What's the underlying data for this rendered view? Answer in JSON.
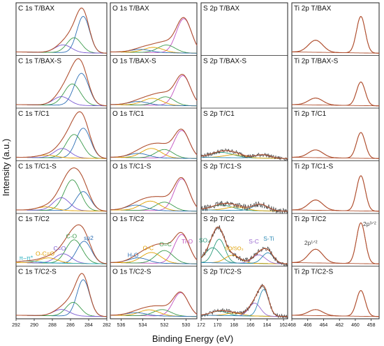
{
  "chart_data": {
    "type": "line",
    "xlabel": "Binding Energy (eV)",
    "ylabel": "Intensity (a.u.)",
    "grid": false,
    "colors": {
      "envelope": "#b05030",
      "raw": "#444444",
      "sp2": "#2d6fb5",
      "sp3": "#3a9a4a",
      "c_o": "#3a9a4a",
      "co_double": "#7a5ad2",
      "o_c_o": "#e0a000",
      "pi": "#2ab0c0",
      "ti_o": "#c050c0",
      "o_eq_c": "#3a9a4a",
      "o_c": "#e0a000",
      "h_o": "#2d6fb5",
      "so4": "#2a9a7a",
      "so3": "#e0a000",
      "s_c": "#9a6ad0",
      "s_ti": "#2d8ab5",
      "ti": "#b05030"
    },
    "columns": [
      {
        "key": "C",
        "xlim": [
          292,
          282
        ],
        "ticks": [
          292,
          290,
          288,
          286,
          284,
          282
        ],
        "tick_labels": [
          "292",
          "290",
          "288",
          "286",
          "284",
          "282"
        ],
        "rows": [
          {
            "label": "C 1s T/BAX",
            "components": [
              {
                "center": 284.6,
                "height": 0.85,
                "width": 0.7,
                "color": "sp2"
              },
              {
                "center": 285.6,
                "height": 0.35,
                "width": 0.8,
                "color": "sp3"
              },
              {
                "center": 286.8,
                "height": 0.18,
                "width": 0.9,
                "color": "co_double"
              }
            ]
          },
          {
            "label": "C 1s T/BAX-S",
            "components": [
              {
                "center": 284.8,
                "height": 0.75,
                "width": 0.8,
                "color": "sp2"
              },
              {
                "center": 285.8,
                "height": 0.5,
                "width": 0.9,
                "color": "sp3"
              },
              {
                "center": 287.0,
                "height": 0.2,
                "width": 0.9,
                "color": "co_double"
              }
            ]
          },
          {
            "label": "C 1s T/C1",
            "components": [
              {
                "center": 284.6,
                "height": 0.7,
                "width": 0.8,
                "color": "sp2"
              },
              {
                "center": 285.6,
                "height": 0.55,
                "width": 0.9,
                "color": "sp3"
              },
              {
                "center": 286.9,
                "height": 0.22,
                "width": 0.9,
                "color": "co_double"
              },
              {
                "center": 288.6,
                "height": 0.06,
                "width": 1.0,
                "color": "o_c_o"
              }
            ]
          },
          {
            "label": "C 1s T/C1-S",
            "components": [
              {
                "center": 284.6,
                "height": 0.45,
                "width": 0.8,
                "color": "sp2"
              },
              {
                "center": 285.8,
                "height": 0.72,
                "width": 0.9,
                "color": "sp3"
              },
              {
                "center": 287.0,
                "height": 0.3,
                "width": 0.9,
                "color": "co_double"
              },
              {
                "center": 288.7,
                "height": 0.08,
                "width": 1.0,
                "color": "o_c_o"
              }
            ]
          },
          {
            "label": "C 1s T/C2",
            "components": [
              {
                "center": 284.5,
                "height": 0.52,
                "width": 0.8,
                "color": "sp2"
              },
              {
                "center": 285.6,
                "height": 0.55,
                "width": 0.9,
                "color": "sp3"
              },
              {
                "center": 286.8,
                "height": 0.22,
                "width": 0.9,
                "color": "co_double"
              },
              {
                "center": 288.4,
                "height": 0.12,
                "width": 1.0,
                "color": "o_c_o"
              },
              {
                "center": 290.6,
                "height": 0.04,
                "width": 1.2,
                "color": "pi"
              }
            ]
          },
          {
            "label": "C 1s T/C2-S",
            "components": [
              {
                "center": 284.6,
                "height": 0.85,
                "width": 0.7,
                "color": "sp2"
              },
              {
                "center": 285.7,
                "height": 0.32,
                "width": 0.8,
                "color": "sp3"
              },
              {
                "center": 287.0,
                "height": 0.15,
                "width": 0.9,
                "color": "co_double"
              }
            ]
          }
        ]
      },
      {
        "key": "O",
        "xlim": [
          537,
          529
        ],
        "ticks": [
          536,
          534,
          532,
          530
        ],
        "tick_labels": [
          "536",
          "534",
          "532",
          "530"
        ],
        "rows": [
          {
            "label": "O 1s T/BAX",
            "components": [
              {
                "center": 530.2,
                "height": 0.8,
                "width": 0.7,
                "color": "ti_o"
              },
              {
                "center": 531.8,
                "height": 0.18,
                "width": 0.8,
                "color": "o_eq_c"
              },
              {
                "center": 533.0,
                "height": 0.12,
                "width": 0.9,
                "color": "o_c"
              },
              {
                "center": 534.2,
                "height": 0.07,
                "width": 0.9,
                "color": "h_o"
              }
            ]
          },
          {
            "label": "O 1s T/BAX-S",
            "components": [
              {
                "center": 530.3,
                "height": 0.7,
                "width": 0.7,
                "color": "ti_o"
              },
              {
                "center": 531.9,
                "height": 0.2,
                "width": 0.8,
                "color": "o_eq_c"
              },
              {
                "center": 533.1,
                "height": 0.16,
                "width": 0.9,
                "color": "o_c"
              },
              {
                "center": 534.4,
                "height": 0.08,
                "width": 0.9,
                "color": "h_o"
              }
            ]
          },
          {
            "label": "O 1s T/C1",
            "components": [
              {
                "center": 530.4,
                "height": 0.65,
                "width": 0.7,
                "color": "ti_o"
              },
              {
                "center": 532.0,
                "height": 0.2,
                "width": 0.8,
                "color": "o_eq_c"
              },
              {
                "center": 533.2,
                "height": 0.22,
                "width": 0.9,
                "color": "o_c"
              },
              {
                "center": 534.4,
                "height": 0.1,
                "width": 0.9,
                "color": "h_o"
              }
            ]
          },
          {
            "label": "O 1s T/C1-S",
            "components": [
              {
                "center": 530.4,
                "height": 0.75,
                "width": 0.7,
                "color": "ti_o"
              },
              {
                "center": 532.0,
                "height": 0.2,
                "width": 0.8,
                "color": "o_eq_c"
              },
              {
                "center": 533.3,
                "height": 0.22,
                "width": 0.9,
                "color": "o_c"
              },
              {
                "center": 534.6,
                "height": 0.12,
                "width": 0.9,
                "color": "h_o"
              }
            ]
          },
          {
            "label": "O 1s T/C2",
            "components": [
              {
                "center": 530.4,
                "height": 0.68,
                "width": 0.7,
                "color": "ti_o"
              },
              {
                "center": 532.0,
                "height": 0.3,
                "width": 0.8,
                "color": "o_eq_c"
              },
              {
                "center": 533.2,
                "height": 0.25,
                "width": 0.9,
                "color": "o_c"
              },
              {
                "center": 534.4,
                "height": 0.12,
                "width": 0.9,
                "color": "h_o"
              }
            ]
          },
          {
            "label": "O 1s T/C2-S",
            "components": [
              {
                "center": 530.5,
                "height": 0.55,
                "width": 0.7,
                "color": "ti_o"
              },
              {
                "center": 532.2,
                "height": 0.15,
                "width": 0.8,
                "color": "o_eq_c"
              },
              {
                "center": 533.4,
                "height": 0.14,
                "width": 0.9,
                "color": "o_c"
              },
              {
                "center": 534.6,
                "height": 0.07,
                "width": 0.9,
                "color": "h_o"
              }
            ]
          }
        ]
      },
      {
        "key": "S",
        "xlim": [
          172,
          161.5
        ],
        "ticks": [
          172,
          170,
          168,
          166,
          164,
          162
        ],
        "tick_labels": [
          "172",
          "170",
          "168",
          "166",
          "164",
          "162"
        ],
        "rows": [
          {
            "label": "S 2p T/BAX",
            "components": []
          },
          {
            "label": "S 2p T/BAX-S",
            "components": []
          },
          {
            "label": "S 2p T/C1",
            "components": [
              {
                "center": 169.5,
                "height": 0.12,
                "width": 1.4,
                "color": "so4"
              },
              {
                "center": 168.0,
                "height": 0.07,
                "width": 1.2,
                "color": "so3"
              },
              {
                "center": 164.5,
                "height": 0.08,
                "width": 0.9,
                "color": "s_ti"
              }
            ],
            "noise": 0.05
          },
          {
            "label": "S 2p T/C1-S",
            "components": [
              {
                "center": 169.5,
                "height": 0.12,
                "width": 1.3,
                "color": "so4"
              },
              {
                "center": 167.8,
                "height": 0.08,
                "width": 1.2,
                "color": "so3"
              },
              {
                "center": 164.8,
                "height": 0.15,
                "width": 0.9,
                "color": "s_ti"
              }
            ],
            "noise": 0.07
          },
          {
            "label": "S 2p T/C2",
            "components": [
              {
                "center": 170.6,
                "height": 0.35,
                "width": 0.9,
                "color": "so4"
              },
              {
                "center": 169.8,
                "height": 0.55,
                "width": 0.7,
                "color": "so4"
              },
              {
                "center": 168.2,
                "height": 0.18,
                "width": 0.9,
                "color": "so3"
              },
              {
                "center": 165.0,
                "height": 0.2,
                "width": 0.8,
                "color": "s_c"
              },
              {
                "center": 163.9,
                "height": 0.25,
                "width": 0.7,
                "color": "s_ti"
              }
            ],
            "noise": 0.06
          },
          {
            "label": "S 2p T/C2-S",
            "components": [
              {
                "center": 169.8,
                "height": 0.1,
                "width": 1.0,
                "color": "so4"
              },
              {
                "center": 168.0,
                "height": 0.06,
                "width": 1.0,
                "color": "so3"
              },
              {
                "center": 165.5,
                "height": 0.3,
                "width": 0.7,
                "color": "s_c"
              },
              {
                "center": 164.4,
                "height": 0.62,
                "width": 0.6,
                "color": "s_ti"
              }
            ],
            "noise": 0.05
          }
        ]
      },
      {
        "key": "Ti",
        "xlim": [
          468,
          457
        ],
        "ticks": [
          468,
          466,
          464,
          462,
          460,
          458
        ],
        "tick_labels": [
          "468",
          "466",
          "464",
          "462",
          "460",
          "458"
        ],
        "rows": [
          {
            "label": "Ti 2p T/BAX",
            "components": [
              {
                "center": 459.3,
                "height": 0.85,
                "width": 0.55,
                "color": "ti"
              },
              {
                "center": 465.0,
                "height": 0.28,
                "width": 0.9,
                "color": "ti"
              }
            ]
          },
          {
            "label": "Ti 2p T/BAX-S",
            "components": [
              {
                "center": 459.3,
                "height": 0.55,
                "width": 0.55,
                "color": "ti"
              },
              {
                "center": 465.0,
                "height": 0.16,
                "width": 0.9,
                "color": "ti"
              }
            ]
          },
          {
            "label": "Ti 2p T/C1",
            "components": [
              {
                "center": 459.3,
                "height": 0.6,
                "width": 0.55,
                "color": "ti"
              },
              {
                "center": 465.0,
                "height": 0.18,
                "width": 0.9,
                "color": "ti"
              }
            ]
          },
          {
            "label": "Ti 2p T/C1-S",
            "components": [
              {
                "center": 459.3,
                "height": 0.82,
                "width": 0.55,
                "color": "ti"
              },
              {
                "center": 465.0,
                "height": 0.24,
                "width": 0.9,
                "color": "ti"
              }
            ]
          },
          {
            "label": "Ti 2p T/C2",
            "components": [
              {
                "center": 459.3,
                "height": 0.95,
                "width": 0.55,
                "color": "ti"
              },
              {
                "center": 465.0,
                "height": 0.32,
                "width": 0.9,
                "color": "ti"
              }
            ]
          },
          {
            "label": "Ti 2p T/C2-S",
            "components": [
              {
                "center": 459.3,
                "height": 0.6,
                "width": 0.55,
                "color": "ti"
              },
              {
                "center": 465.0,
                "height": 0.14,
                "width": 0.9,
                "color": "ti"
              }
            ]
          }
        ]
      }
    ],
    "annotations": [
      {
        "col": 0,
        "row": 4,
        "text": "C-O",
        "x": 285.9,
        "y": 0.62,
        "color": "c_o"
      },
      {
        "col": 0,
        "row": 4,
        "text": "sp2",
        "x": 284.0,
        "y": 0.58,
        "color": "sp2"
      },
      {
        "col": 0,
        "row": 4,
        "text": "C=O",
        "x": 287.2,
        "y": 0.33,
        "color": "co_double"
      },
      {
        "col": 0,
        "row": 4,
        "text": "O-C=O",
        "x": 288.8,
        "y": 0.21,
        "color": "o_c_o"
      },
      {
        "col": 0,
        "row": 4,
        "text": "π–π*",
        "x": 290.9,
        "y": 0.11,
        "color": "pi"
      },
      {
        "col": 1,
        "row": 4,
        "text": "Ti-O",
        "x": 529.9,
        "y": 0.5,
        "color": "ti_o"
      },
      {
        "col": 1,
        "row": 4,
        "text": "O=C",
        "x": 531.9,
        "y": 0.43,
        "color": "o_eq_c"
      },
      {
        "col": 1,
        "row": 4,
        "text": "O-C",
        "x": 533.5,
        "y": 0.34,
        "color": "o_c"
      },
      {
        "col": 1,
        "row": 4,
        "text": "H-O",
        "x": 534.9,
        "y": 0.18,
        "color": "h_o"
      },
      {
        "col": 2,
        "row": 4,
        "text": "SO₄",
        "x": 171.6,
        "y": 0.52,
        "color": "so4"
      },
      {
        "col": 2,
        "row": 4,
        "text": "SO/SO₃",
        "x": 168.0,
        "y": 0.34,
        "color": "so3"
      },
      {
        "col": 2,
        "row": 4,
        "text": "S-C",
        "x": 165.6,
        "y": 0.5,
        "color": "s_c"
      },
      {
        "col": 2,
        "row": 4,
        "text": "S-Ti",
        "x": 163.8,
        "y": 0.56,
        "color": "s_ti"
      },
      {
        "col": 3,
        "row": 4,
        "text": "2p¹ᐟ²",
        "x": 465.6,
        "y": 0.46,
        "color": "raw"
      },
      {
        "col": 3,
        "row": 4,
        "text": "2p³ᐟ²",
        "x": 458.2,
        "y": 0.9,
        "color": "raw"
      }
    ]
  }
}
